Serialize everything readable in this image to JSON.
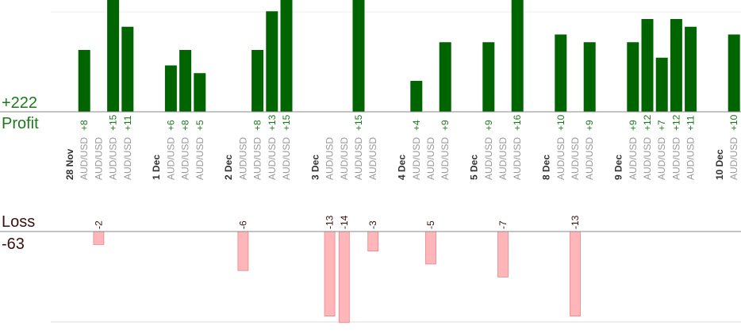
{
  "chart_data": {
    "type": "bar",
    "profit_label": "Profit",
    "profit_total": "+222",
    "loss_label": "Loss",
    "loss_total": "-63",
    "colors": {
      "profit_bar": "#006400",
      "profit_text": "#1a7a1a",
      "loss_bar": "#ffb6b9",
      "loss_bar_edge": "#f08088",
      "loss_text": "#3d0f0f",
      "date_text": "#333333",
      "pair_text": "#999999"
    },
    "slots": [
      {
        "kind": "date",
        "label": "28 Nov"
      },
      {
        "kind": "trade",
        "pair": "AUD/USD",
        "value": 8,
        "label": "+8"
      },
      {
        "kind": "trade",
        "pair": "AUD/USD",
        "value": -2,
        "label": "-2"
      },
      {
        "kind": "trade",
        "pair": "AUD/USD",
        "value": 15,
        "label": "+15"
      },
      {
        "kind": "trade",
        "pair": "AUD/USD",
        "value": 11,
        "label": "+11"
      },
      {
        "kind": "gap"
      },
      {
        "kind": "date",
        "label": "1 Dec"
      },
      {
        "kind": "trade",
        "pair": "AUD/USD",
        "value": 6,
        "label": "+6"
      },
      {
        "kind": "trade",
        "pair": "AUD/USD",
        "value": 8,
        "label": "+8"
      },
      {
        "kind": "trade",
        "pair": "AUD/USD",
        "value": 5,
        "label": "+5"
      },
      {
        "kind": "gap"
      },
      {
        "kind": "date",
        "label": "2 Dec"
      },
      {
        "kind": "trade",
        "pair": "AUD/USD",
        "value": -6,
        "label": "-6"
      },
      {
        "kind": "trade",
        "pair": "AUD/USD",
        "value": 8,
        "label": "+8"
      },
      {
        "kind": "trade",
        "pair": "AUD/USD",
        "value": 13,
        "label": "+13"
      },
      {
        "kind": "trade",
        "pair": "AUD/USD",
        "value": 15,
        "label": "+15"
      },
      {
        "kind": "gap"
      },
      {
        "kind": "date",
        "label": "3 Dec"
      },
      {
        "kind": "trade",
        "pair": "AUD/USD",
        "value": -13,
        "label": "-13"
      },
      {
        "kind": "trade",
        "pair": "AUD/USD",
        "value": -14,
        "label": "-14"
      },
      {
        "kind": "trade",
        "pair": "AUD/USD",
        "value": 15,
        "label": "+15"
      },
      {
        "kind": "trade",
        "pair": "AUD/USD",
        "value": -3,
        "label": "-3"
      },
      {
        "kind": "gap"
      },
      {
        "kind": "date",
        "label": "4 Dec"
      },
      {
        "kind": "trade",
        "pair": "AUD/USD",
        "value": 4,
        "label": "+4"
      },
      {
        "kind": "trade",
        "pair": "AUD/USD",
        "value": -5,
        "label": "-5"
      },
      {
        "kind": "trade",
        "pair": "AUD/USD",
        "value": 9,
        "label": "+9"
      },
      {
        "kind": "gap"
      },
      {
        "kind": "date",
        "label": "5 Dec"
      },
      {
        "kind": "trade",
        "pair": "AUD/USD",
        "value": 9,
        "label": "+9"
      },
      {
        "kind": "trade",
        "pair": "AUD/USD",
        "value": -7,
        "label": "-7"
      },
      {
        "kind": "trade",
        "pair": "AUD/USD",
        "value": 16,
        "label": "+16"
      },
      {
        "kind": "gap"
      },
      {
        "kind": "date",
        "label": "8 Dec"
      },
      {
        "kind": "trade",
        "pair": "AUD/USD",
        "value": 10,
        "label": "+10"
      },
      {
        "kind": "trade",
        "pair": "AUD/USD",
        "value": -13,
        "label": "-13"
      },
      {
        "kind": "trade",
        "pair": "AUD/USD",
        "value": 9,
        "label": "+9"
      },
      {
        "kind": "gap"
      },
      {
        "kind": "date",
        "label": "9 Dec"
      },
      {
        "kind": "trade",
        "pair": "AUD/USD",
        "value": 9,
        "label": "+9"
      },
      {
        "kind": "trade",
        "pair": "AUD/USD",
        "value": 12,
        "label": "+12"
      },
      {
        "kind": "trade",
        "pair": "AUD/USD",
        "value": 7,
        "label": "+7"
      },
      {
        "kind": "trade",
        "pair": "AUD/USD",
        "value": 12,
        "label": "+12"
      },
      {
        "kind": "trade",
        "pair": "AUD/USD",
        "value": 11,
        "label": "+11"
      },
      {
        "kind": "gap"
      },
      {
        "kind": "date",
        "label": "10 Dec"
      },
      {
        "kind": "trade",
        "pair": "AUD/USD",
        "value": 10,
        "label": "+10"
      }
    ]
  }
}
